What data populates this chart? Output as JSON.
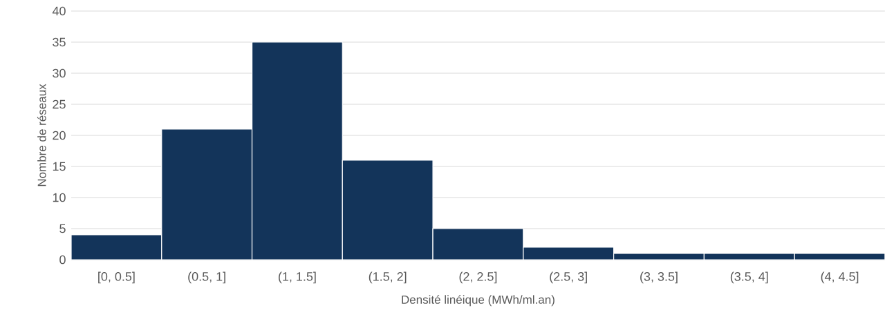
{
  "chart_data": {
    "type": "bar",
    "xlabel": "Densité linéique (MWh/ml.an)",
    "ylabel": "Nombre de réseaux",
    "categories": [
      "[0, 0.5]",
      "(0.5, 1]",
      "(1, 1.5]",
      "(1.5, 2]",
      "(2, 2.5]",
      "(2.5, 3]",
      "(3, 3.5]",
      "(3.5, 4]",
      "(4, 4.5]"
    ],
    "values": [
      4,
      21,
      35,
      16,
      5,
      2,
      1,
      1,
      1
    ],
    "color": "#13345a",
    "ylim": [
      0,
      40
    ],
    "yticks": [
      0,
      5,
      10,
      15,
      20,
      25,
      30,
      35,
      40
    ],
    "grid": "y"
  }
}
